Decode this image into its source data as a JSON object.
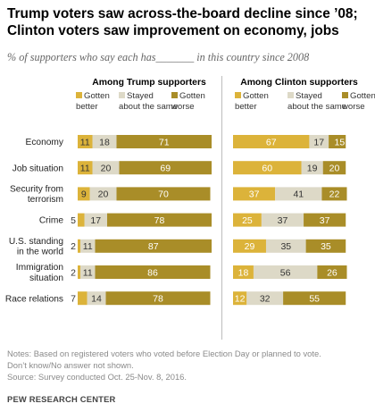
{
  "title_line1": "Trump voters saw across-the-board  decline since ’08;",
  "title_line2": "Clinton voters saw improvement on economy, jobs",
  "subtitle": "% of supporters who say each has_______ in this country since 2008",
  "notes": [
    "Notes: Based on registered voters who voted before Election Day or planned to vote.",
    "Don’t know/No answer not shown.",
    "Source: Survey conducted Oct. 25-Nov. 8, 2016."
  ],
  "source": "PEW RESEARCH CENTER",
  "colors": {
    "better": "#dcb33a",
    "same": "#ddd9c7",
    "worse": "#a98d28",
    "label_dark": "#333333",
    "label_light": "#ffffff",
    "separator": "#bdbdbd"
  },
  "chart_data": {
    "type": "bar",
    "stacked": true,
    "orientation": "horizontal",
    "categories": [
      [
        "Economy"
      ],
      [
        "Job situation"
      ],
      [
        "Security from",
        "terrorism"
      ],
      [
        "Crime"
      ],
      [
        "U.S. standing",
        "in the world"
      ],
      [
        "Immigration",
        "situation"
      ],
      [
        "Race relations"
      ]
    ],
    "legend_labels": [
      [
        "Gotten",
        "better"
      ],
      [
        "Stayed",
        "about the same"
      ],
      [
        "Gotten",
        "worse"
      ]
    ],
    "panels": [
      {
        "title": "Among Trump supporters",
        "series": [
          {
            "name": "Gotten better",
            "values": [
              11,
              11,
              9,
              5,
              2,
              2,
              7
            ]
          },
          {
            "name": "Stayed about the same",
            "values": [
              18,
              20,
              20,
              17,
              11,
              11,
              14
            ]
          },
          {
            "name": "Gotten worse",
            "values": [
              71,
              69,
              70,
              78,
              87,
              86,
              78
            ]
          }
        ]
      },
      {
        "title": "Among Clinton supporters",
        "series": [
          {
            "name": "Gotten better",
            "values": [
              67,
              60,
              37,
              25,
              29,
              18,
              12
            ]
          },
          {
            "name": "Stayed about the same",
            "values": [
              17,
              19,
              41,
              37,
              35,
              56,
              32
            ]
          },
          {
            "name": "Gotten worse",
            "values": [
              15,
              20,
              22,
              37,
              35,
              26,
              55
            ]
          }
        ]
      }
    ]
  }
}
